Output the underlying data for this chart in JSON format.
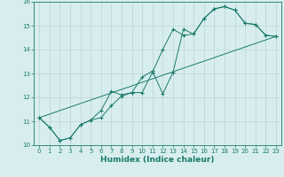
{
  "xlabel": "Humidex (Indice chaleur)",
  "bg_color": "#d8eeee",
  "grid_color": "#c0d8d8",
  "line_color": "#1a7a6e",
  "xlim": [
    -0.5,
    23.5
  ],
  "ylim": [
    10,
    16
  ],
  "xticks": [
    0,
    1,
    2,
    3,
    4,
    5,
    6,
    7,
    8,
    9,
    10,
    11,
    12,
    13,
    14,
    15,
    16,
    17,
    18,
    19,
    20,
    21,
    22,
    23
  ],
  "yticks": [
    10,
    11,
    12,
    13,
    14,
    15,
    16
  ],
  "series1_x": [
    0,
    1,
    2,
    3,
    4,
    5,
    6,
    7,
    8,
    9,
    10,
    11,
    12,
    13,
    14,
    15,
    16,
    17,
    18,
    19,
    20,
    21,
    22,
    23
  ],
  "series1_y": [
    11.15,
    10.75,
    10.2,
    10.3,
    10.85,
    11.05,
    11.45,
    12.25,
    12.1,
    12.2,
    12.2,
    13.05,
    14.0,
    14.85,
    14.6,
    14.65,
    15.3,
    15.7,
    15.8,
    15.65,
    15.1,
    15.05,
    14.6,
    14.55
  ],
  "series2_x": [
    0,
    1,
    2,
    3,
    4,
    5,
    6,
    7,
    8,
    9,
    10,
    11,
    12,
    13,
    14,
    15,
    16,
    17,
    18,
    19,
    20,
    21,
    22,
    23
  ],
  "series2_y": [
    11.15,
    10.75,
    10.2,
    10.3,
    10.85,
    11.05,
    11.15,
    11.65,
    12.05,
    12.2,
    12.85,
    13.1,
    12.15,
    13.05,
    14.85,
    14.65,
    15.3,
    15.7,
    15.8,
    15.65,
    15.1,
    15.05,
    14.6,
    14.55
  ],
  "series3_x": [
    0,
    23
  ],
  "series3_y": [
    11.15,
    14.55
  ]
}
